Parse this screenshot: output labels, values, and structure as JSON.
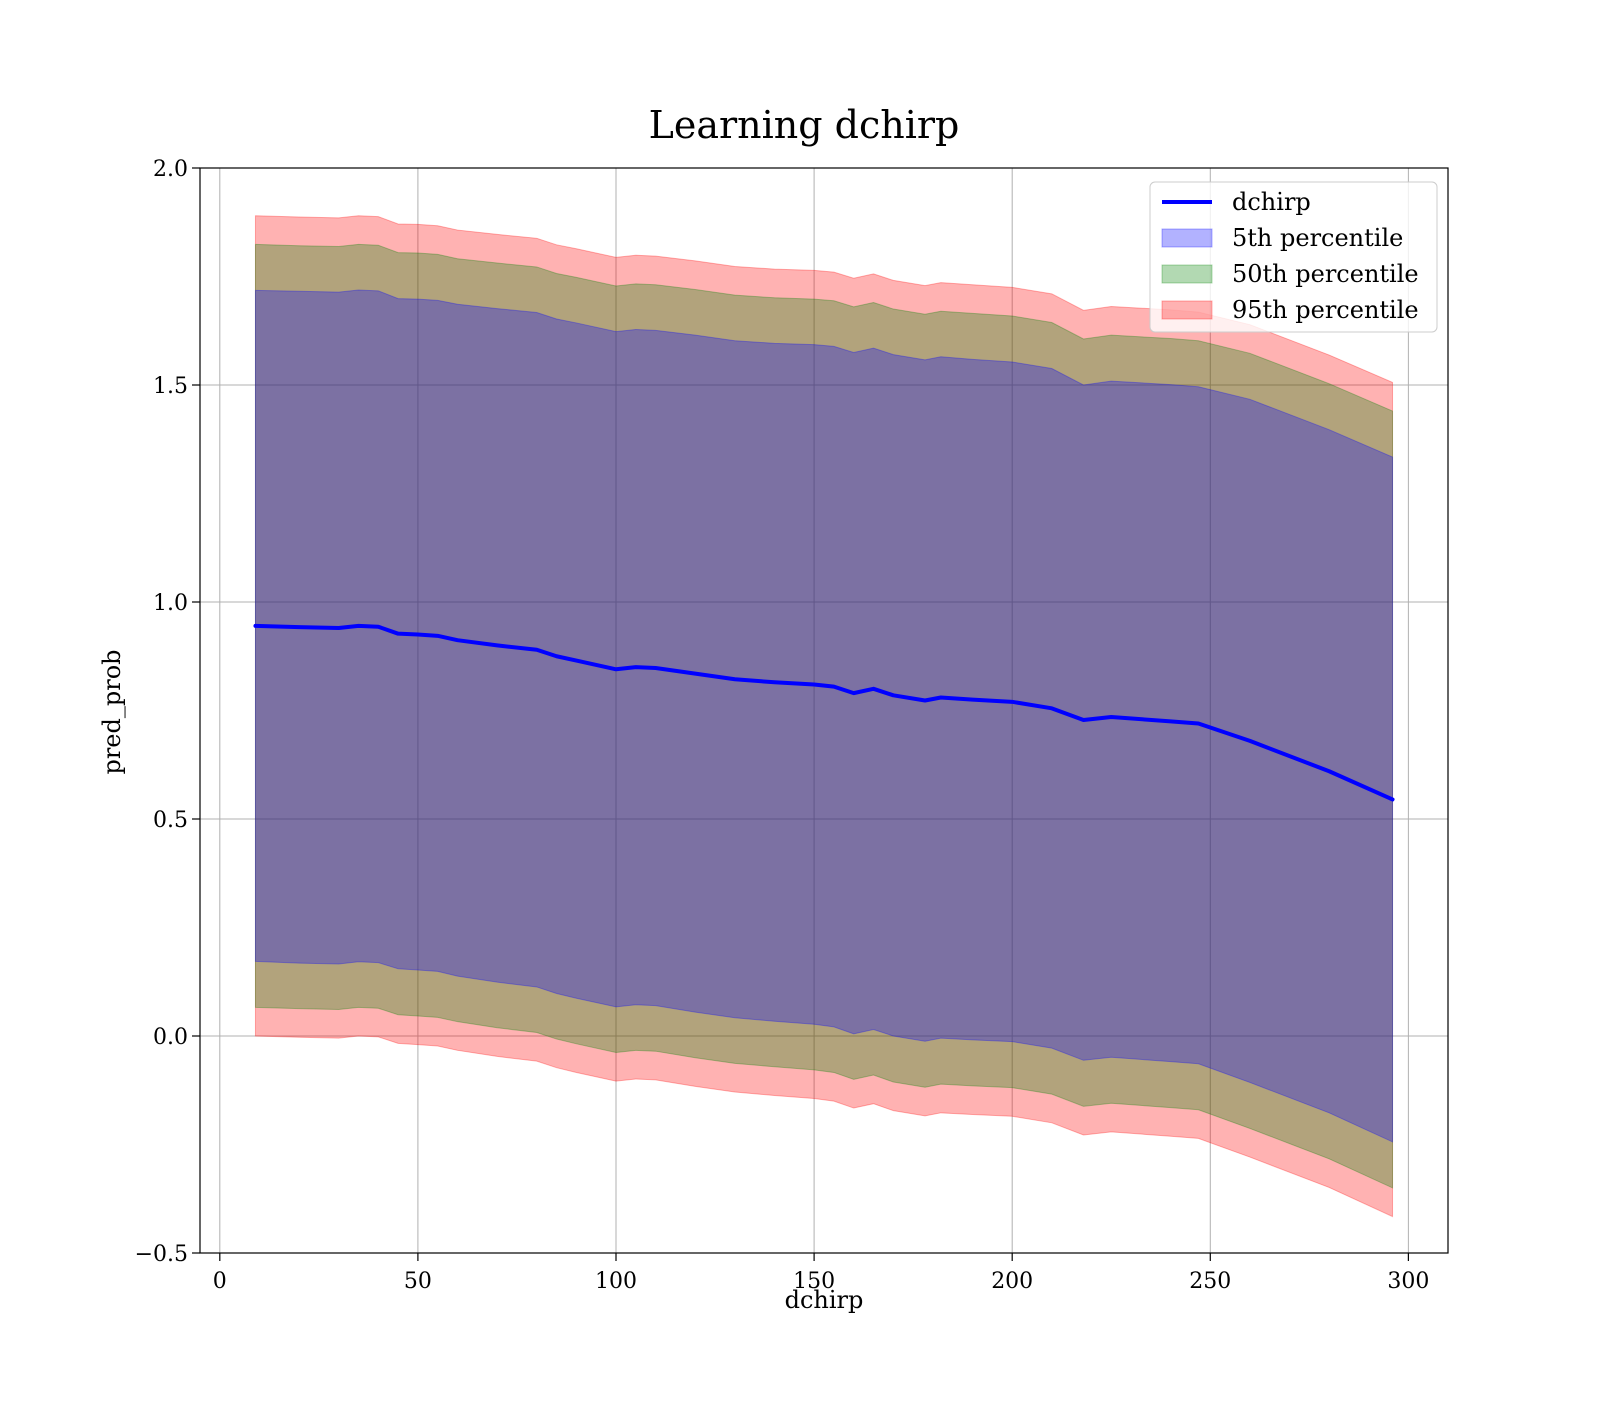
{
  "chart_data": {
    "type": "area",
    "title": "Learning dchirp",
    "xlabel": "dchirp",
    "ylabel": "pred_prob",
    "xlim": [
      -5,
      310
    ],
    "ylim": [
      -0.5,
      2.0
    ],
    "xticks": [
      0,
      50,
      100,
      150,
      200,
      250,
      300
    ],
    "yticks": [
      -0.5,
      0.0,
      0.5,
      1.0,
      1.5,
      2.0
    ],
    "xtick_labels": [
      "0",
      "50",
      "100",
      "150",
      "200",
      "250",
      "300"
    ],
    "ytick_labels": [
      "−0.5",
      "0.0",
      "0.5",
      "1.0",
      "1.5",
      "2.0"
    ],
    "grid": true,
    "legend_position": "top-right",
    "x": [
      9,
      20,
      30,
      35,
      40,
      45,
      50,
      55,
      60,
      70,
      80,
      85,
      90,
      100,
      105,
      110,
      120,
      130,
      140,
      150,
      155,
      160,
      165,
      170,
      178,
      182,
      190,
      200,
      210,
      218,
      225,
      240,
      247,
      260,
      280,
      296
    ],
    "line": {
      "name": "dchirp",
      "color": "#0000ff",
      "values": [
        0.945,
        0.942,
        0.94,
        0.945,
        0.943,
        0.927,
        0.925,
        0.922,
        0.912,
        0.9,
        0.89,
        0.875,
        0.865,
        0.845,
        0.85,
        0.848,
        0.835,
        0.822,
        0.815,
        0.81,
        0.805,
        0.79,
        0.8,
        0.785,
        0.773,
        0.78,
        0.775,
        0.77,
        0.755,
        0.728,
        0.735,
        0.725,
        0.72,
        0.68,
        0.61,
        0.545
      ]
    },
    "bands": [
      {
        "name": "5th percentile",
        "color": "#0000ff",
        "lower": [
          0.172,
          0.168,
          0.166,
          0.171,
          0.169,
          0.155,
          0.152,
          0.149,
          0.138,
          0.124,
          0.113,
          0.098,
          0.087,
          0.067,
          0.072,
          0.07,
          0.055,
          0.042,
          0.034,
          0.027,
          0.021,
          0.005,
          0.015,
          0.0,
          -0.012,
          -0.005,
          -0.009,
          -0.013,
          -0.028,
          -0.056,
          -0.049,
          -0.059,
          -0.064,
          -0.107,
          -0.177,
          -0.244
        ],
        "upper": [
          1.718,
          1.716,
          1.714,
          1.719,
          1.717,
          1.699,
          1.698,
          1.695,
          1.686,
          1.676,
          1.667,
          1.652,
          1.643,
          1.623,
          1.628,
          1.626,
          1.615,
          1.602,
          1.596,
          1.593,
          1.589,
          1.575,
          1.585,
          1.57,
          1.558,
          1.565,
          1.559,
          1.553,
          1.538,
          1.5,
          1.509,
          1.501,
          1.496,
          1.467,
          1.397,
          1.334
        ]
      },
      {
        "name": "50th percentile",
        "color": "#008000",
        "lower": [
          0.066,
          0.063,
          0.061,
          0.066,
          0.064,
          0.049,
          0.046,
          0.043,
          0.033,
          0.019,
          0.008,
          -0.007,
          -0.018,
          -0.038,
          -0.033,
          -0.035,
          -0.05,
          -0.063,
          -0.071,
          -0.078,
          -0.084,
          -0.1,
          -0.09,
          -0.106,
          -0.118,
          -0.111,
          -0.115,
          -0.119,
          -0.134,
          -0.162,
          -0.155,
          -0.165,
          -0.17,
          -0.213,
          -0.283,
          -0.35
        ],
        "upper": [
          1.824,
          1.821,
          1.819,
          1.824,
          1.822,
          1.805,
          1.804,
          1.801,
          1.791,
          1.781,
          1.772,
          1.757,
          1.748,
          1.728,
          1.733,
          1.731,
          1.72,
          1.707,
          1.701,
          1.698,
          1.694,
          1.68,
          1.69,
          1.675,
          1.663,
          1.67,
          1.665,
          1.659,
          1.644,
          1.606,
          1.615,
          1.607,
          1.602,
          1.573,
          1.503,
          1.44
        ]
      },
      {
        "name": "95th percentile",
        "color": "#ff0000",
        "lower": [
          0.0,
          -0.003,
          -0.005,
          0.0,
          -0.002,
          -0.017,
          -0.02,
          -0.023,
          -0.033,
          -0.047,
          -0.058,
          -0.073,
          -0.084,
          -0.104,
          -0.099,
          -0.101,
          -0.116,
          -0.129,
          -0.137,
          -0.144,
          -0.15,
          -0.166,
          -0.156,
          -0.172,
          -0.184,
          -0.177,
          -0.181,
          -0.185,
          -0.2,
          -0.228,
          -0.221,
          -0.231,
          -0.236,
          -0.279,
          -0.349,
          -0.416
        ],
        "upper": [
          1.89,
          1.887,
          1.885,
          1.89,
          1.888,
          1.871,
          1.87,
          1.867,
          1.857,
          1.847,
          1.838,
          1.823,
          1.814,
          1.794,
          1.799,
          1.797,
          1.786,
          1.773,
          1.767,
          1.764,
          1.76,
          1.746,
          1.756,
          1.741,
          1.729,
          1.736,
          1.731,
          1.725,
          1.71,
          1.672,
          1.681,
          1.673,
          1.668,
          1.639,
          1.569,
          1.506
        ]
      }
    ],
    "legend": [
      "dchirp",
      "5th percentile",
      "50th percentile",
      "95th percentile"
    ]
  }
}
